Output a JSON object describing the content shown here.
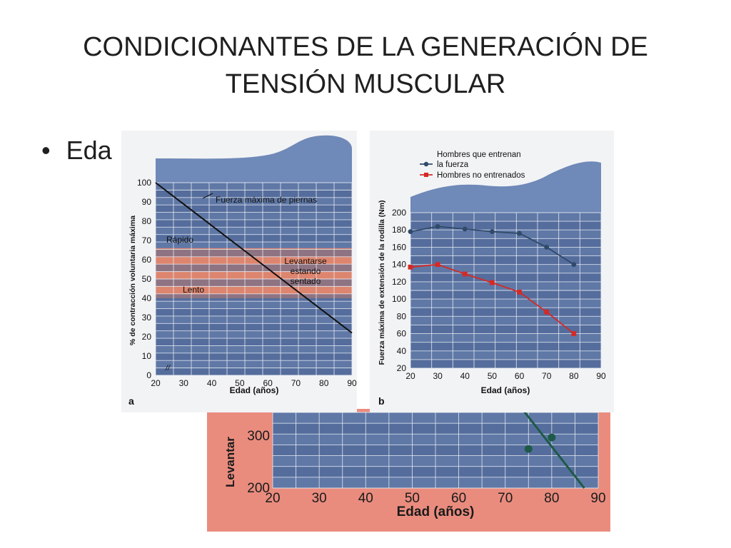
{
  "slide": {
    "title_line1": "CONDICIONANTES DE LA GENERACIÓN DE",
    "title_line2": "TENSIÓN MUSCULAR",
    "bullet_text": "Eda",
    "bullet_symbol": "•"
  },
  "colors": {
    "grid_bg": "#5f78a6",
    "grid_stripe_dark": "#4c6594",
    "grid_line": "#e9eef6",
    "cap_dark": "#6f89b8",
    "band": "#e4866a",
    "band_light": "#f0a38a",
    "series_trained": "#2f4a6a",
    "series_untrained": "#d42a26",
    "strength_line": "#111111",
    "bottom_band": "#e98c7e",
    "bottom_line": "#1e5a48"
  },
  "chart_data": [
    {
      "type": "line",
      "panel_label": "a",
      "xlabel": "Edad (años)",
      "ylabel": "% de contracción voluntaria máxima",
      "x_ticks": [
        20,
        30,
        40,
        50,
        60,
        70,
        80,
        90
      ],
      "y_ticks": [
        0,
        10,
        20,
        30,
        40,
        50,
        60,
        70,
        80,
        90,
        100
      ],
      "xlim": [
        20,
        90
      ],
      "ylim": [
        0,
        100
      ],
      "axis_break_symbol": "//",
      "series": [
        {
          "name": "Fuerza máxima de piernas",
          "x": [
            20,
            90
          ],
          "y": [
            100,
            22
          ]
        }
      ],
      "bands": [
        {
          "label": "Rápido",
          "y_range": [
            50,
            66
          ]
        },
        {
          "label": "Lento",
          "y_range": [
            40,
            50
          ]
        }
      ],
      "annotations": {
        "series_label": "Fuerza máxima de piernas",
        "fast_label": "Rápido",
        "slow_label": "Lento",
        "rise_line1": "Levantarse",
        "rise_line2": "estando",
        "rise_line3": "sentado"
      }
    },
    {
      "type": "line",
      "panel_label": "b",
      "xlabel": "Edad (años)",
      "ylabel": "Fuerza máxima de extensión de la rodilla (Nm)",
      "x_ticks": [
        20,
        30,
        40,
        50,
        60,
        70,
        80,
        90
      ],
      "y_ticks": [
        20,
        40,
        60,
        80,
        100,
        120,
        140,
        160,
        180,
        200
      ],
      "xlim": [
        20,
        90
      ],
      "ylim": [
        20,
        200
      ],
      "legend_position": "top-left",
      "series": [
        {
          "name_line1": "Hombres que entrenan",
          "name_line2": "la fuerza",
          "x": [
            20,
            30,
            40,
            50,
            60,
            70,
            80
          ],
          "y": [
            178,
            184,
            181,
            178,
            176,
            160,
            140
          ]
        },
        {
          "name": "Hombres no entrenados",
          "x": [
            20,
            30,
            40,
            50,
            60,
            70,
            80
          ],
          "y": [
            137,
            140,
            129,
            119,
            108,
            85,
            60
          ]
        }
      ]
    },
    {
      "type": "scatter",
      "partial": true,
      "xlabel": "Edad (años)",
      "ylabel": "Levantar",
      "x_ticks": [
        20,
        30,
        40,
        50,
        60,
        70,
        80,
        90
      ],
      "y_ticks": [
        200,
        300
      ],
      "xlim": [
        20,
        90
      ],
      "ylim": [
        200,
        400
      ],
      "points": [
        {
          "x": 75,
          "y": 275
        },
        {
          "x": 80,
          "y": 297
        }
      ],
      "trend_line": {
        "x": [
          74,
          87
        ],
        "y": [
          400,
          200
        ]
      }
    }
  ]
}
